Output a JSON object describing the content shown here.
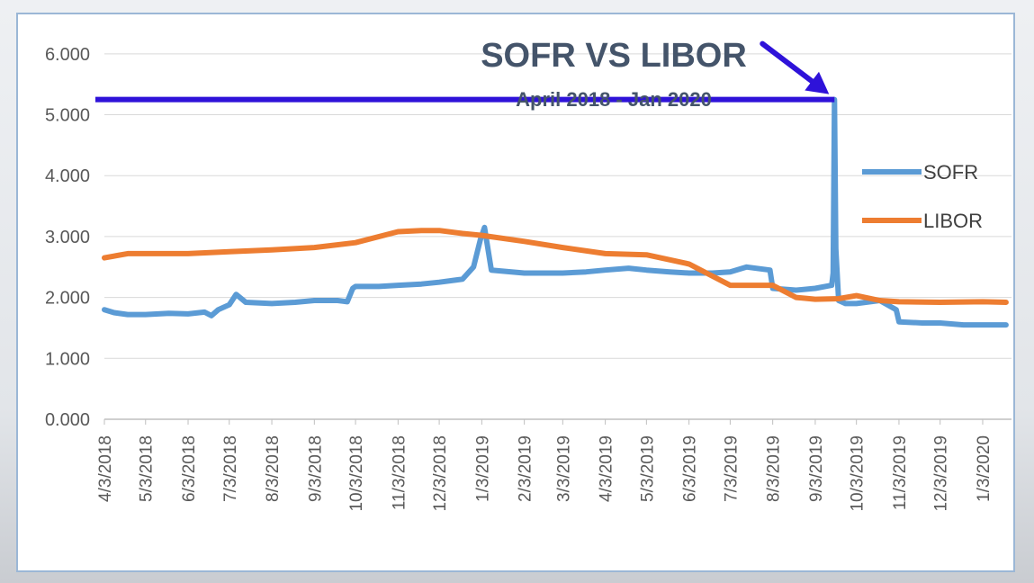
{
  "chart_data": {
    "type": "line",
    "title": "SOFR VS LIBOR",
    "subtitle": "April 2018 - Jan 2020",
    "xlabel": "",
    "ylabel": "",
    "ylim": [
      0,
      6.5
    ],
    "yticks": [
      "0.000",
      "1.000",
      "2.000",
      "3.000",
      "4.000",
      "5.000",
      "6.000"
    ],
    "x_tick_labels": [
      "4/3/2018",
      "5/3/2018",
      "6/3/2018",
      "7/3/2018",
      "8/3/2018",
      "9/3/2018",
      "10/3/2018",
      "11/3/2018",
      "12/3/2018",
      "1/3/2019",
      "2/3/2019",
      "3/3/2019",
      "4/3/2019",
      "5/3/2019",
      "6/3/2019",
      "7/3/2019",
      "8/3/2019",
      "9/3/2019",
      "10/3/2019",
      "11/3/2019",
      "12/3/2019",
      "1/3/2020"
    ],
    "legend_position": "right",
    "grid": true,
    "series": [
      {
        "name": "SOFR",
        "color": "#5b9bd5",
        "x": [
          "4/3/2018",
          "4/10/2018",
          "4/20/2018",
          "5/3/2018",
          "5/20/2018",
          "6/3/2018",
          "6/15/2018",
          "6/20/2018",
          "6/25/2018",
          "7/3/2018",
          "7/8/2018",
          "7/15/2018",
          "8/3/2018",
          "8/20/2018",
          "9/3/2018",
          "9/20/2018",
          "9/27/2018",
          "10/1/2018",
          "10/3/2018",
          "10/20/2018",
          "11/3/2018",
          "11/20/2018",
          "12/3/2018",
          "12/20/2018",
          "12/28/2018",
          "1/2/2019",
          "1/5/2019",
          "1/10/2019",
          "2/3/2019",
          "3/3/2019",
          "3/20/2019",
          "4/3/2019",
          "4/20/2019",
          "5/3/2019",
          "5/20/2019",
          "6/3/2019",
          "6/20/2019",
          "7/3/2019",
          "7/15/2019",
          "8/1/2019",
          "8/3/2019",
          "8/20/2019",
          "9/3/2019",
          "9/15/2019",
          "9/16/2019",
          "9/17/2019",
          "9/18/2019",
          "9/20/2019",
          "9/25/2019",
          "10/3/2019",
          "10/20/2019",
          "11/1/2019",
          "11/3/2019",
          "11/20/2019",
          "12/3/2019",
          "12/20/2019",
          "1/3/2020",
          "1/20/2020"
        ],
        "values": [
          1.8,
          1.75,
          1.72,
          1.72,
          1.74,
          1.73,
          1.76,
          1.7,
          1.8,
          1.88,
          2.05,
          1.92,
          1.9,
          1.92,
          1.95,
          1.95,
          1.93,
          2.15,
          2.18,
          2.18,
          2.2,
          2.22,
          2.25,
          2.3,
          2.5,
          2.95,
          3.15,
          2.45,
          2.4,
          2.4,
          2.42,
          2.45,
          2.48,
          2.45,
          2.42,
          2.4,
          2.4,
          2.42,
          2.5,
          2.45,
          2.15,
          2.12,
          2.15,
          2.2,
          2.4,
          5.25,
          2.8,
          1.95,
          1.9,
          1.9,
          1.95,
          1.8,
          1.6,
          1.58,
          1.58,
          1.55,
          1.55,
          1.55
        ]
      },
      {
        "name": "LIBOR",
        "color": "#ed7d31",
        "x": [
          "4/3/2018",
          "4/20/2018",
          "5/3/2018",
          "6/3/2018",
          "7/3/2018",
          "8/3/2018",
          "9/3/2018",
          "10/3/2018",
          "11/3/2018",
          "11/20/2018",
          "12/3/2018",
          "12/20/2018",
          "1/3/2019",
          "2/3/2019",
          "3/3/2019",
          "4/3/2019",
          "5/3/2019",
          "6/3/2019",
          "6/20/2019",
          "7/3/2019",
          "8/3/2019",
          "8/20/2019",
          "9/3/2019",
          "9/20/2019",
          "10/3/2019",
          "10/20/2019",
          "11/3/2019",
          "12/3/2019",
          "1/3/2020",
          "1/20/2020"
        ],
        "values": [
          2.65,
          2.72,
          2.72,
          2.72,
          2.75,
          2.78,
          2.82,
          2.9,
          3.08,
          3.1,
          3.1,
          3.05,
          3.02,
          2.92,
          2.82,
          2.72,
          2.7,
          2.55,
          2.35,
          2.2,
          2.2,
          2.0,
          1.97,
          1.98,
          2.03,
          1.95,
          1.93,
          1.92,
          1.93,
          1.92
        ]
      }
    ],
    "annotations": [
      {
        "type": "horizontal-line",
        "value": 5.25,
        "color": "#2e12d9"
      },
      {
        "type": "arrow",
        "target_x": "9/17/2019",
        "target_y": 5.25,
        "color": "#2e12d9"
      }
    ]
  }
}
